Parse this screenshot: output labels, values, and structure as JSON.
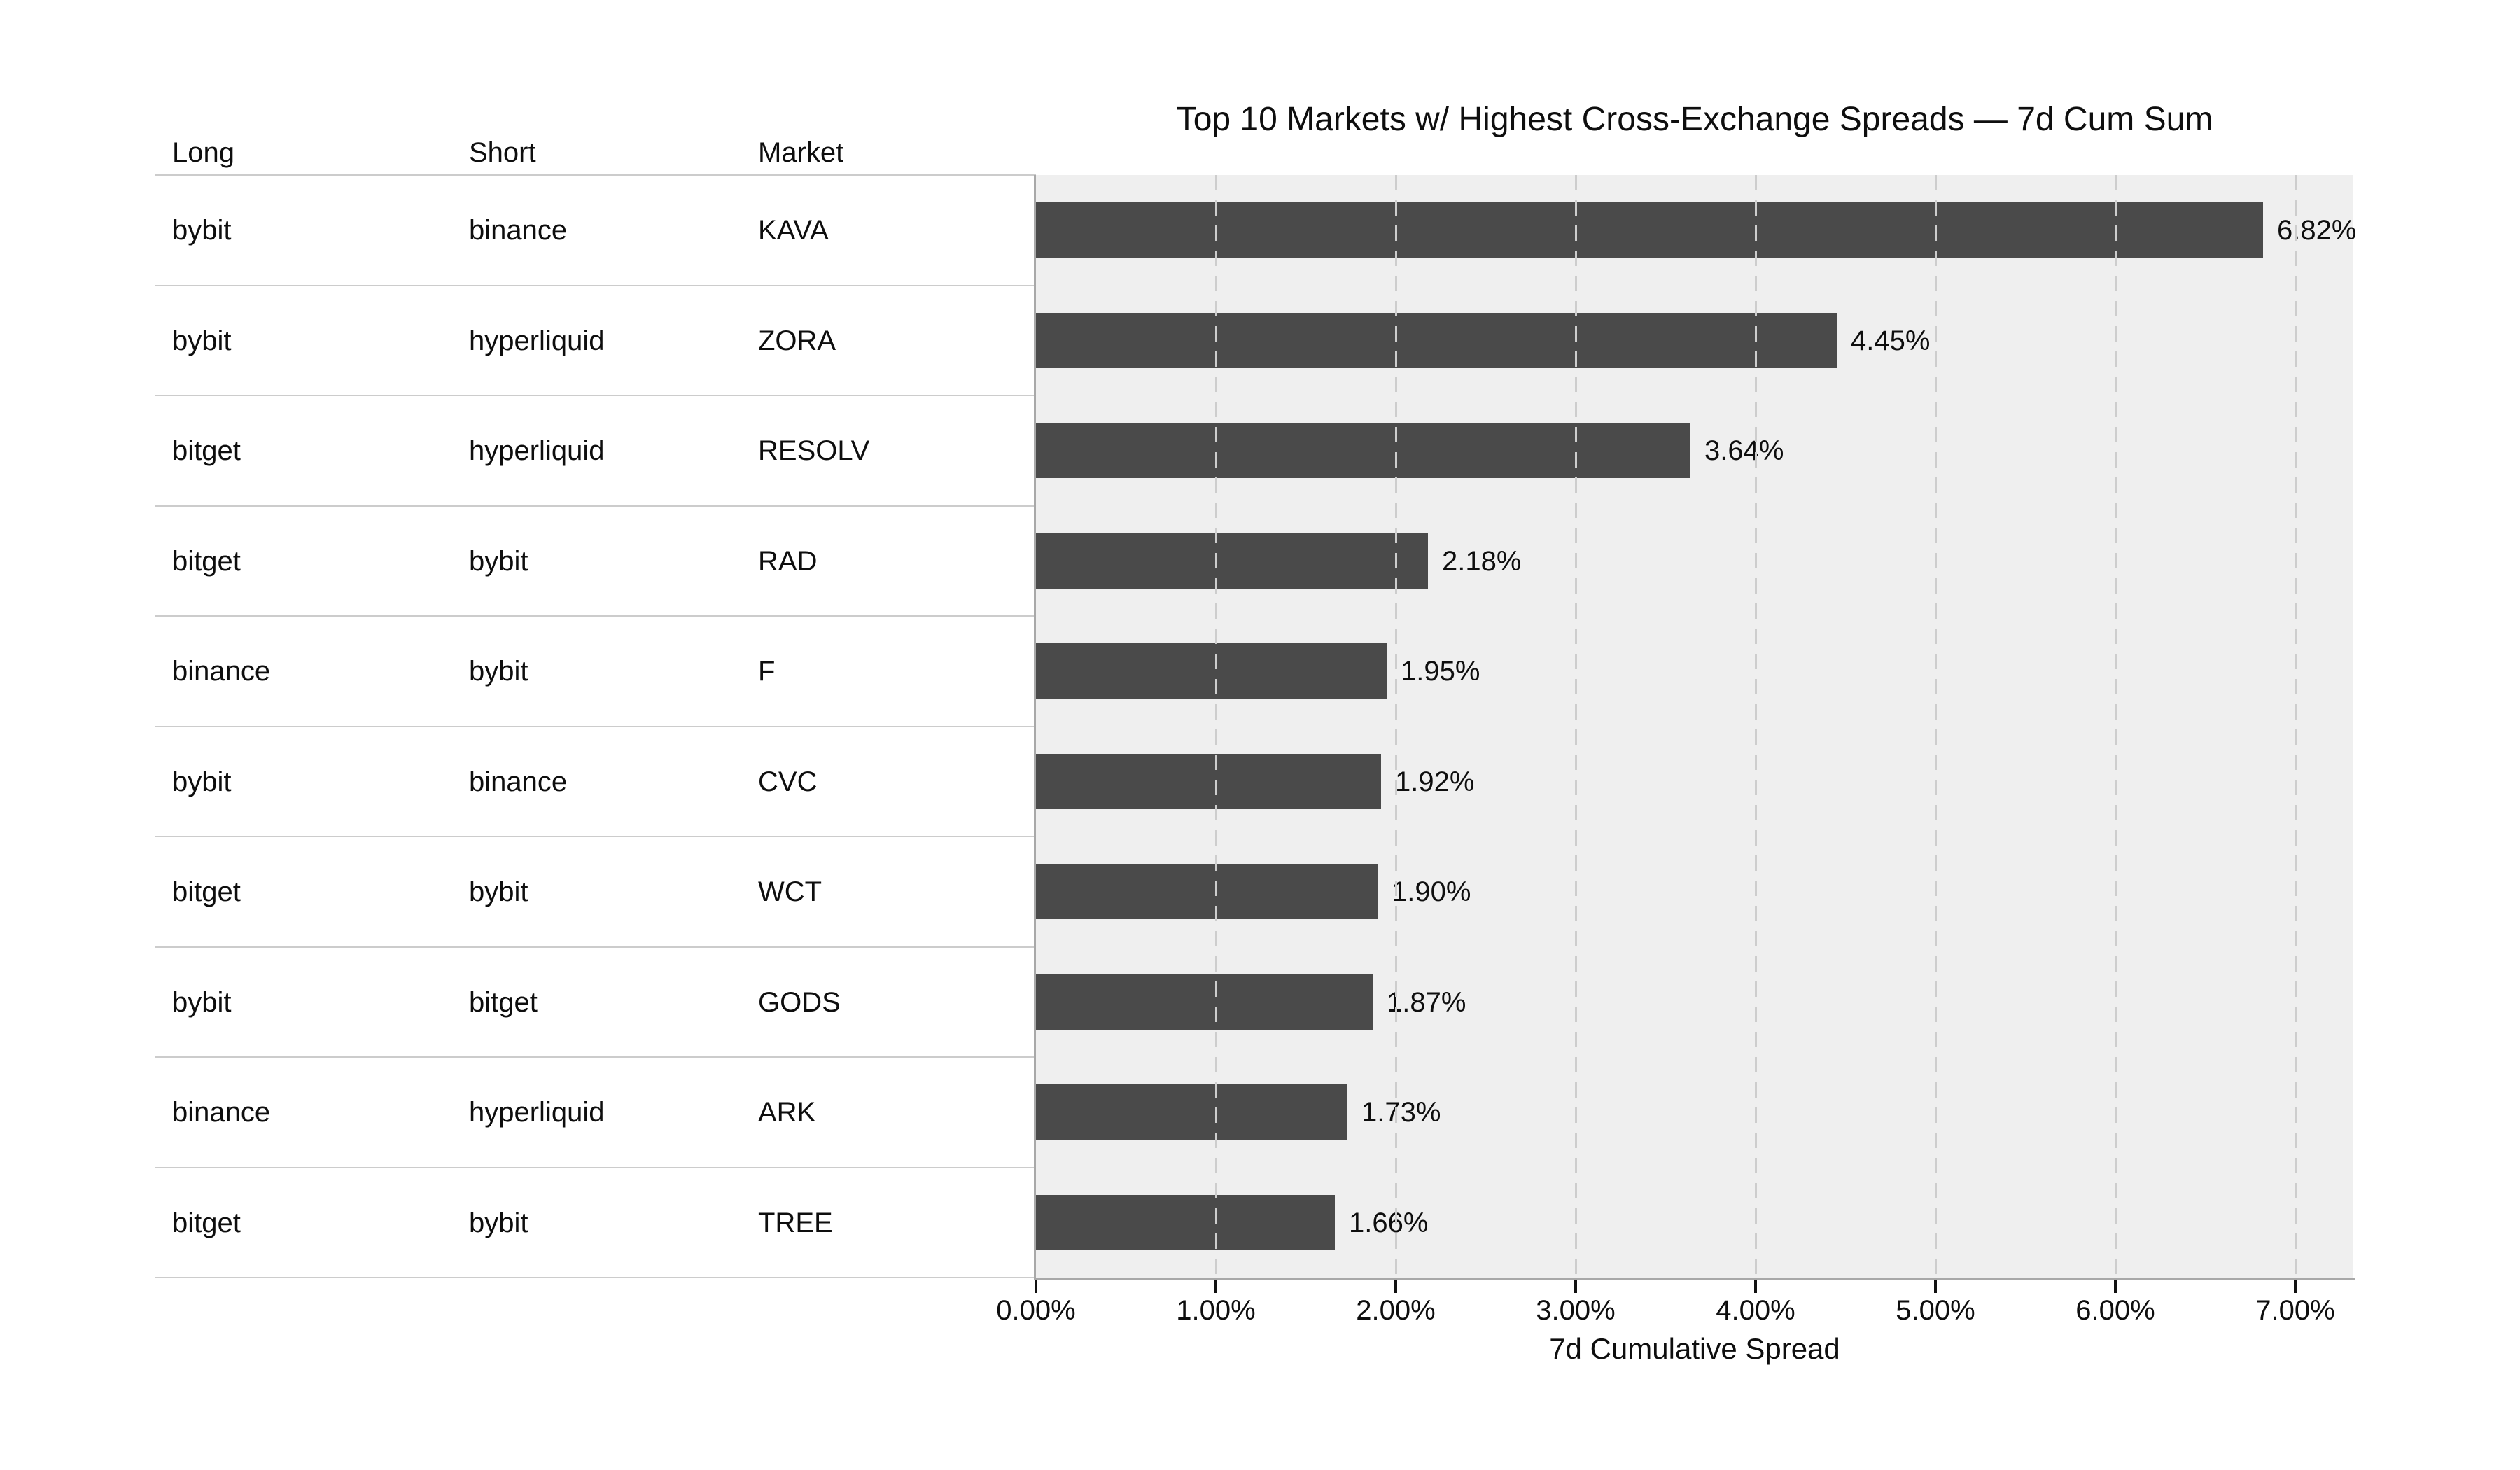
{
  "title": "Top 10 Markets w/ Highest Cross-Exchange Spreads — 7d Cum Sum",
  "table": {
    "headers": [
      "Long",
      "Short",
      "Market"
    ],
    "rows": [
      {
        "long": "bybit",
        "short": "binance",
        "market": "KAVA"
      },
      {
        "long": "bybit",
        "short": "hyperliquid",
        "market": "ZORA"
      },
      {
        "long": "bitget",
        "short": "hyperliquid",
        "market": "RESOLV"
      },
      {
        "long": "bitget",
        "short": "bybit",
        "market": "RAD"
      },
      {
        "long": "binance",
        "short": "bybit",
        "market": "F"
      },
      {
        "long": "bybit",
        "short": "binance",
        "market": "CVC"
      },
      {
        "long": "bitget",
        "short": "bybit",
        "market": "WCT"
      },
      {
        "long": "bybit",
        "short": "bitget",
        "market": "GODS"
      },
      {
        "long": "binance",
        "short": "hyperliquid",
        "market": "ARK"
      },
      {
        "long": "bitget",
        "short": "bybit",
        "market": "TREE"
      }
    ]
  },
  "chart_data": {
    "type": "bar",
    "orientation": "horizontal",
    "title": "Top 10 Markets w/ Highest Cross-Exchange Spreads — 7d Cum Sum",
    "categories": [
      "KAVA",
      "ZORA",
      "RESOLV",
      "RAD",
      "F",
      "CVC",
      "WCT",
      "GODS",
      "ARK",
      "TREE"
    ],
    "values": [
      6.82,
      4.45,
      3.64,
      2.18,
      1.95,
      1.92,
      1.9,
      1.87,
      1.73,
      1.66
    ],
    "value_labels": [
      "6.82%",
      "4.45%",
      "3.64%",
      "2.18%",
      "1.95%",
      "1.92%",
      "1.90%",
      "1.87%",
      "1.73%",
      "1.66%"
    ],
    "xlabel": "7d Cumulative Spread",
    "x_ticks": [
      "0.00%",
      "1.00%",
      "2.00%",
      "3.00%",
      "4.00%",
      "5.00%",
      "6.00%",
      "7.00%"
    ],
    "xlim": [
      0,
      7.32
    ],
    "grid": "vertical-dashed",
    "legend": "none",
    "colors": {
      "bar": "#4a4a4a",
      "plot_background": "#efefef",
      "gridline": "#cdcdcd",
      "axis_spine": "#a8a8a8",
      "row_separator": "#cccccc",
      "text": "#0e0e0e"
    }
  }
}
